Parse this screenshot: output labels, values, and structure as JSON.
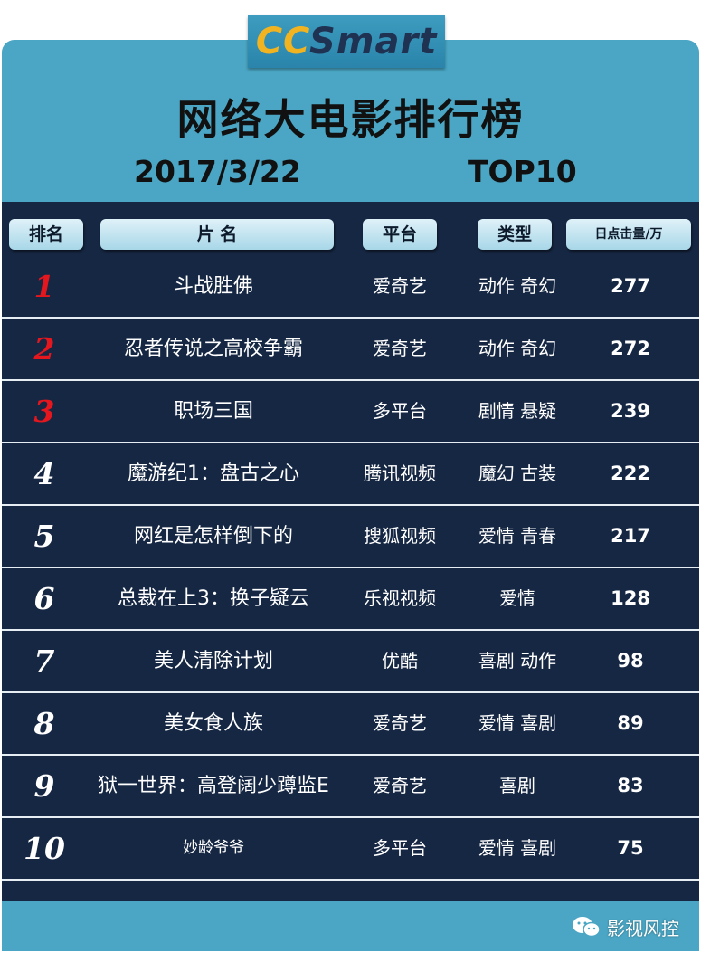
{
  "logo": {
    "part1": "CC",
    "part2": "Smart"
  },
  "title": "网络大电影排行榜",
  "date": "2017/3/22",
  "top_label": "TOP10",
  "headers": {
    "rank": "排名",
    "name": "片  名",
    "platform": "平台",
    "genre": "类型",
    "clicks": "日点击量/万"
  },
  "rows": [
    {
      "rank": "1",
      "name": "斗战胜佛",
      "platform": "爱奇艺",
      "genre": "动作 奇幻",
      "clicks": "277"
    },
    {
      "rank": "2",
      "name": "忍者传说之高校争霸",
      "platform": "爱奇艺",
      "genre": "动作 奇幻",
      "clicks": "272"
    },
    {
      "rank": "3",
      "name": "职场三国",
      "platform": "多平台",
      "genre": "剧情 悬疑",
      "clicks": "239"
    },
    {
      "rank": "4",
      "name": "魔游纪1：盘古之心",
      "platform": "腾讯视频",
      "genre": "魔幻 古装",
      "clicks": "222"
    },
    {
      "rank": "5",
      "name": "网红是怎样倒下的",
      "platform": "搜狐视频",
      "genre": "爱情 青春",
      "clicks": "217"
    },
    {
      "rank": "6",
      "name": "总裁在上3：换子疑云",
      "platform": "乐视视频",
      "genre": "爱情",
      "clicks": "128"
    },
    {
      "rank": "7",
      "name": "美人清除计划",
      "platform": "优酷",
      "genre": "喜剧 动作",
      "clicks": "98"
    },
    {
      "rank": "8",
      "name": "美女食人族",
      "platform": "爱奇艺",
      "genre": "爱情 喜剧",
      "clicks": "89"
    },
    {
      "rank": "9",
      "name": "狱一世界：高登阔少蹲监E",
      "platform": "爱奇艺",
      "genre": "喜剧",
      "clicks": "83"
    },
    {
      "rank": "10",
      "name": "妙龄爷爷",
      "platform": "多平台",
      "genre": "爱情 喜剧",
      "clicks": "75"
    }
  ],
  "watermark": {
    "text": "影视风控",
    "icon": "wechat-icon"
  },
  "colors": {
    "board": "#4aa6c4",
    "panel": "#162743",
    "accent_red": "#e4161e",
    "logo_yellow": "#f2b320"
  },
  "chart_data": {
    "type": "table",
    "title": "网络大电影排行榜",
    "subtitle": "2017/3/22 TOP10",
    "columns": [
      "排名",
      "片  名",
      "平台",
      "类型",
      "日点击量/万"
    ],
    "rows": [
      [
        "1",
        "斗战胜佛",
        "爱奇艺",
        "动作 奇幻",
        277
      ],
      [
        "2",
        "忍者传说之高校争霸",
        "爱奇艺",
        "动作 奇幻",
        272
      ],
      [
        "3",
        "职场三国",
        "多平台",
        "剧情 悬疑",
        239
      ],
      [
        "4",
        "魔游纪1：盘古之心",
        "腾讯视频",
        "魔幻 古装",
        222
      ],
      [
        "5",
        "网红是怎样倒下的",
        "搜狐视频",
        "爱情 青春",
        217
      ],
      [
        "6",
        "总裁在上3：换子疑云",
        "乐视视频",
        "爱情",
        128
      ],
      [
        "7",
        "美人清除计划",
        "优酷",
        "喜剧 动作",
        98
      ],
      [
        "8",
        "美女食人族",
        "爱奇艺",
        "爱情 喜剧",
        89
      ],
      [
        "9",
        "狱一世界：高登阔少蹲监E",
        "爱奇艺",
        "喜剧",
        83
      ],
      [
        "10",
        "妙龄爷爷",
        "多平台",
        "爱情 喜剧",
        75
      ]
    ]
  }
}
